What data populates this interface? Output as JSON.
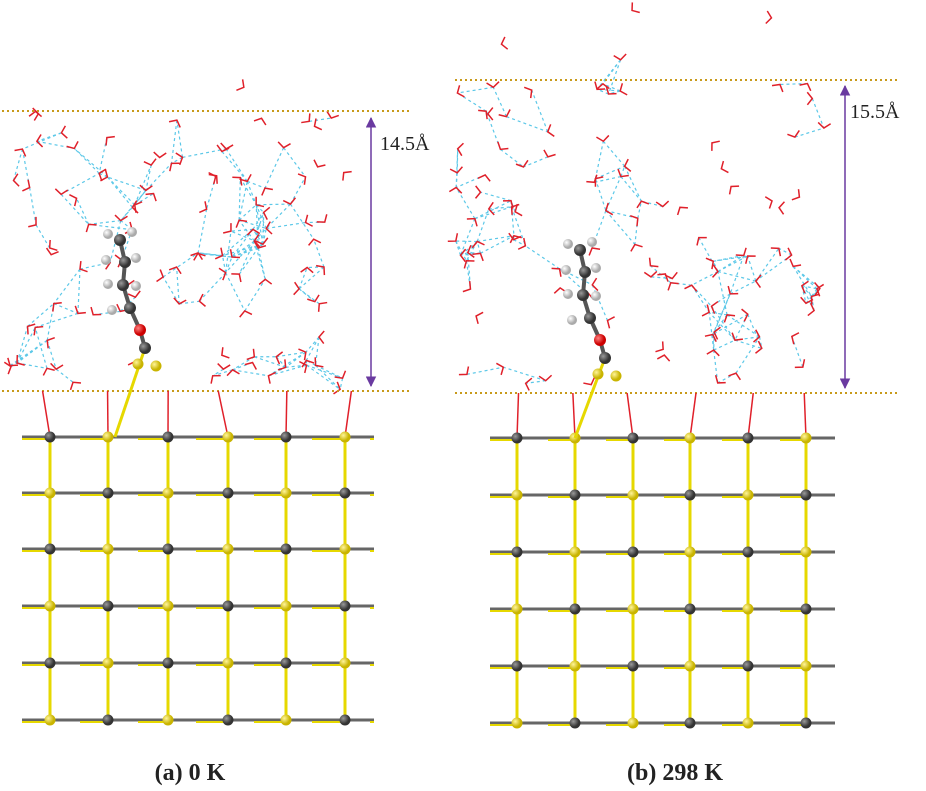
{
  "panels": [
    {
      "caption": "(a) 0 K",
      "distance": "14.5Å"
    },
    {
      "caption": "(b) 298 K",
      "distance": "15.5Å"
    }
  ]
}
